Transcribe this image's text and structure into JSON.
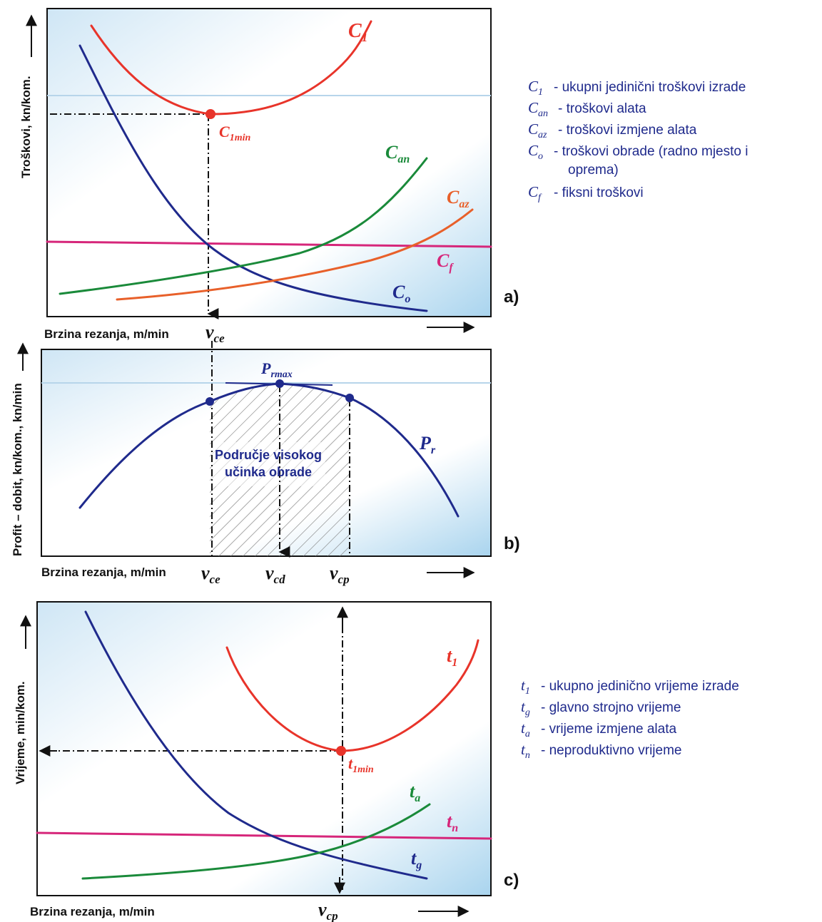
{
  "panel_a": {
    "label": "a)",
    "y_axis": "Troškovi, kn/kom.",
    "x_axis": "Brzina rezanja, m/min",
    "curves": {
      "c1": {
        "sym": "C",
        "sub": "1"
      },
      "can": {
        "sym": "C",
        "sub": "an"
      },
      "caz": {
        "sym": "C",
        "sub": "az"
      },
      "cf": {
        "sym": "C",
        "sub": "f"
      },
      "co": {
        "sym": "C",
        "sub": "o"
      }
    },
    "min_point": {
      "sym": "C",
      "sub": "1min"
    },
    "v_marker": {
      "sym": "v",
      "sub": "ce"
    },
    "legend": [
      {
        "sym": "C",
        "sub": "1",
        "text": "- ukupni jedinični troškovi izrade"
      },
      {
        "sym": "C",
        "sub": "an",
        "text": "- troškovi alata"
      },
      {
        "sym": "C",
        "sub": "az",
        "text": "- troškovi izmjene alata"
      },
      {
        "sym": "C",
        "sub": "o",
        "text": "- troškovi obrade (radno mjesto i",
        "text2": "oprema)"
      },
      {
        "sym": "C",
        "sub": "f",
        "text": "- fiksni troškovi"
      }
    ]
  },
  "panel_b": {
    "label": "b)",
    "y_axis": "Profit – dobit, kn/kom., kn/min",
    "x_axis": "Brzina rezanja, m/min",
    "curve": {
      "sym": "P",
      "sub": "r"
    },
    "max_point": {
      "sym": "P",
      "sub": "rmax"
    },
    "region_line1": "Područje visokog",
    "region_line2": "učinka obrade",
    "v_markers": [
      {
        "sym": "v",
        "sub": "ce"
      },
      {
        "sym": "v",
        "sub": "cd"
      },
      {
        "sym": "v",
        "sub": "cp"
      }
    ]
  },
  "panel_c": {
    "label": "c)",
    "y_axis": "Vrijeme, min/kom.",
    "x_axis": "Brzina rezanja, m/min",
    "curves": {
      "t1": {
        "sym": "t",
        "sub": "1"
      },
      "ta": {
        "sym": "t",
        "sub": "a"
      },
      "tn": {
        "sym": "t",
        "sub": "n"
      },
      "tg": {
        "sym": "t",
        "sub": "g"
      }
    },
    "min_point": {
      "sym": "t",
      "sub": "1min"
    },
    "v_marker": {
      "sym": "v",
      "sub": "cp"
    },
    "legend": [
      {
        "sym": "t",
        "sub": "1",
        "text": "- ukupno jedinično vrijeme izrade"
      },
      {
        "sym": "t",
        "sub": "g",
        "text": "- glavno strojno vrijeme"
      },
      {
        "sym": "t",
        "sub": "a",
        "text": "- vrijeme izmjene alata"
      },
      {
        "sym": "t",
        "sub": "n",
        "text": "- neproduktivno vrijeme"
      }
    ]
  },
  "colors": {
    "total": "#e8342a",
    "tool": "#1a8a3a",
    "change": "#e8602a",
    "fixed": "#d6267a",
    "process": "#1f2a8c",
    "frame_bg_top": "#d8ecf8",
    "frame_bg_mid": "#ffffff",
    "frame_bg_bottom": "#bfe0f2"
  }
}
